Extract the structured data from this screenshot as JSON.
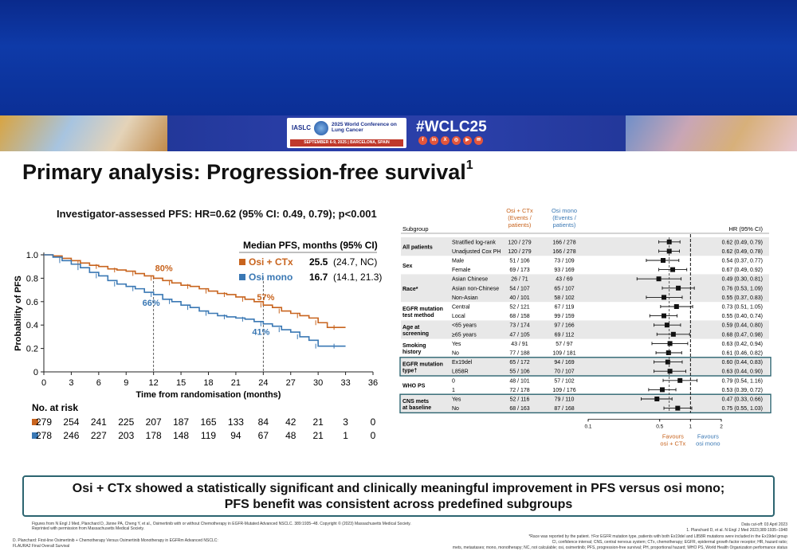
{
  "header": {
    "hashtag": "#WCLC25",
    "org": "IASLC",
    "conference_title": "2025 World Conference on Lung Cancer",
    "conference_dates": "SEPTEMBER 6-9, 2025 | BARCELONA, SPAIN",
    "social_icons": [
      "facebook-icon",
      "linkedin-icon",
      "x-icon",
      "instagram-icon",
      "youtube-icon",
      "wechat-icon"
    ]
  },
  "slide": {
    "title": "Primary analysis: Progression-free survival",
    "title_sup": "1",
    "subtitle": "Investigator-assessed PFS: HR=0.62 (95% CI: 0.49, 0.79); p<0.001",
    "summary_line1": "Osi + CTx showed a statistically significant and clinically meaningful improvement in PFS versus osi mono;",
    "summary_line2": "PFS benefit was consistent across predefined subgroups"
  },
  "colors": {
    "osi_ctx": "#c8641e",
    "osi_mono": "#3a78b4",
    "box_outline": "#2c6470"
  },
  "chart_data": [
    {
      "type": "line",
      "subtype": "kaplan-meier",
      "ylabel": "Probability of PFS",
      "xlabel": "Time from randomisation (months)",
      "xticks": [
        0,
        3,
        6,
        9,
        12,
        15,
        18,
        21,
        24,
        27,
        30,
        33,
        36
      ],
      "yticks": [
        "0",
        "0.2",
        "0.4",
        "0.6",
        "0.8",
        "1.0"
      ],
      "xlim": [
        0,
        36
      ],
      "ylim": [
        0,
        1
      ],
      "legend_title": "Median PFS, months (95% CI)",
      "legend": [
        {
          "name": "Osi + CTx",
          "value": "25.5",
          "ci": "(24.7, NC)"
        },
        {
          "name": "Osi mono",
          "value": "16.7",
          "ci": "(14.1, 21.3)"
        }
      ],
      "annotations": [
        {
          "text": "80%",
          "x": 12,
          "y": 0.8
        },
        {
          "text": "66%",
          "x": 12,
          "y": 0.66
        },
        {
          "text": "57%",
          "x": 24,
          "y": 0.57
        },
        {
          "text": "41%",
          "x": 24,
          "y": 0.41
        }
      ],
      "series": [
        {
          "name": "Osi + CTx",
          "x": [
            0,
            1,
            2,
            3,
            4,
            5,
            6,
            7,
            8,
            9,
            10,
            11,
            12,
            13,
            14,
            15,
            16,
            17,
            18,
            19,
            20,
            21,
            22,
            23,
            24,
            25,
            26,
            27,
            28,
            29,
            30,
            31,
            32,
            33
          ],
          "values": [
            1.0,
            0.99,
            0.97,
            0.95,
            0.93,
            0.91,
            0.9,
            0.88,
            0.87,
            0.86,
            0.84,
            0.82,
            0.8,
            0.78,
            0.76,
            0.74,
            0.73,
            0.71,
            0.69,
            0.67,
            0.66,
            0.64,
            0.62,
            0.6,
            0.57,
            0.55,
            0.52,
            0.5,
            0.48,
            0.46,
            0.42,
            0.38,
            0.38,
            0.38
          ]
        },
        {
          "name": "Osi mono",
          "x": [
            0,
            1,
            2,
            3,
            4,
            5,
            6,
            7,
            8,
            9,
            10,
            11,
            12,
            13,
            14,
            15,
            16,
            17,
            18,
            19,
            20,
            21,
            22,
            23,
            24,
            25,
            26,
            27,
            28,
            29,
            30,
            31,
            32,
            33
          ],
          "values": [
            1.0,
            0.98,
            0.95,
            0.92,
            0.89,
            0.85,
            0.82,
            0.78,
            0.75,
            0.73,
            0.71,
            0.68,
            0.66,
            0.62,
            0.6,
            0.57,
            0.55,
            0.52,
            0.5,
            0.48,
            0.47,
            0.46,
            0.45,
            0.43,
            0.41,
            0.39,
            0.36,
            0.34,
            0.3,
            0.27,
            0.22,
            0.22,
            0.22,
            0.22
          ]
        }
      ],
      "at_risk": {
        "label": "No. at risk",
        "rows": [
          {
            "name": "Osi + CTx",
            "values": [
              "279",
              "254",
              "241",
              "225",
              "207",
              "187",
              "165",
              "133",
              "84",
              "42",
              "21",
              "3",
              "0"
            ]
          },
          {
            "name": "Osi mono",
            "values": [
              "278",
              "246",
              "227",
              "203",
              "178",
              "148",
              "119",
              "94",
              "67",
              "48",
              "21",
              "1",
              "0"
            ]
          }
        ]
      }
    },
    {
      "type": "scatter",
      "subtype": "forest-plot",
      "headers": {
        "subgroup": "Subgroup",
        "col_ctx": "Osi + CTx (Events / patients)",
        "col_mono": "Osi mono (Events / patients)",
        "hr": "HR (95% CI)"
      },
      "xscale": "log",
      "xticks": [
        "0.1",
        "0.5",
        "1",
        "2"
      ],
      "favours_left": "Favours osi + CTx",
      "favours_right": "Favours osi mono",
      "groups": [
        {
          "label": "All patients",
          "rows": [
            {
              "name": "Stratified log-rank",
              "ctx": "120 / 279",
              "mono": "166 / 278",
              "hr": 0.62,
              "lo": 0.49,
              "hi": 0.79,
              "text": "0.62 (0.49, 0.79)"
            },
            {
              "name": "Unadjusted Cox PH",
              "ctx": "120 / 279",
              "mono": "166 / 278",
              "hr": 0.62,
              "lo": 0.49,
              "hi": 0.78,
              "text": "0.62 (0.49, 0.78)"
            }
          ]
        },
        {
          "label": "Sex",
          "rows": [
            {
              "name": "Male",
              "ctx": "51 / 106",
              "mono": "73 / 109",
              "hr": 0.54,
              "lo": 0.37,
              "hi": 0.77,
              "text": "0.54 (0.37, 0.77)"
            },
            {
              "name": "Female",
              "ctx": "69 / 173",
              "mono": "93 / 169",
              "hr": 0.67,
              "lo": 0.49,
              "hi": 0.92,
              "text": "0.67 (0.49, 0.92)"
            }
          ]
        },
        {
          "label": "Race*",
          "rows": [
            {
              "name": "Asian Chinese",
              "ctx": "26 / 71",
              "mono": "43 / 69",
              "hr": 0.49,
              "lo": 0.3,
              "hi": 0.81,
              "text": "0.49 (0.30, 0.81)"
            },
            {
              "name": "Asian non-Chinese",
              "ctx": "54 / 107",
              "mono": "65 / 107",
              "hr": 0.76,
              "lo": 0.53,
              "hi": 1.09,
              "text": "0.76 (0.53, 1.09)"
            },
            {
              "name": "Non-Asian",
              "ctx": "40 / 101",
              "mono": "58 / 102",
              "hr": 0.55,
              "lo": 0.37,
              "hi": 0.83,
              "text": "0.55 (0.37, 0.83)"
            }
          ]
        },
        {
          "label": "EGFR mutation test method",
          "rows": [
            {
              "name": "Central",
              "ctx": "52 / 121",
              "mono": "67 / 119",
              "hr": 0.73,
              "lo": 0.51,
              "hi": 1.05,
              "text": "0.73 (0.51, 1.05)"
            },
            {
              "name": "Local",
              "ctx": "68 / 158",
              "mono": "99 / 159",
              "hr": 0.55,
              "lo": 0.4,
              "hi": 0.74,
              "text": "0.55 (0.40, 0.74)"
            }
          ]
        },
        {
          "label": "Age at screening",
          "rows": [
            {
              "name": "<65 years",
              "ctx": "73 / 174",
              "mono": "97 / 166",
              "hr": 0.59,
              "lo": 0.44,
              "hi": 0.8,
              "text": "0.59 (0.44, 0.80)"
            },
            {
              "name": "≥65 years",
              "ctx": "47 / 105",
              "mono": "69 / 112",
              "hr": 0.68,
              "lo": 0.47,
              "hi": 0.98,
              "text": "0.68 (0.47, 0.98)"
            }
          ]
        },
        {
          "label": "Smoking history",
          "rows": [
            {
              "name": "Yes",
              "ctx": "43 / 91",
              "mono": "57 / 97",
              "hr": 0.63,
              "lo": 0.42,
              "hi": 0.94,
              "text": "0.63 (0.42, 0.94)"
            },
            {
              "name": "No",
              "ctx": "77 / 188",
              "mono": "109 / 181",
              "hr": 0.61,
              "lo": 0.46,
              "hi": 0.82,
              "text": "0.61 (0.46, 0.82)"
            }
          ]
        },
        {
          "label": "EGFR mutation type†",
          "boxed": true,
          "rows": [
            {
              "name": "Ex19del",
              "ctx": "65 / 172",
              "mono": "94 / 169",
              "hr": 0.6,
              "lo": 0.44,
              "hi": 0.83,
              "text": "0.60 (0.44, 0.83)"
            },
            {
              "name": "L858R",
              "ctx": "55 / 106",
              "mono": "70 / 107",
              "hr": 0.63,
              "lo": 0.44,
              "hi": 0.9,
              "text": "0.63 (0.44, 0.90)"
            }
          ]
        },
        {
          "label": "WHO PS",
          "rows": [
            {
              "name": "0",
              "ctx": "48 / 101",
              "mono": "57 / 102",
              "hr": 0.79,
              "lo": 0.54,
              "hi": 1.16,
              "text": "0.79 (0.54, 1.16)"
            },
            {
              "name": "1",
              "ctx": "72 / 178",
              "mono": "109 / 176",
              "hr": 0.53,
              "lo": 0.39,
              "hi": 0.72,
              "text": "0.53 (0.39, 0.72)"
            }
          ]
        },
        {
          "label": "CNS mets at baseline",
          "boxed": true,
          "rows": [
            {
              "name": "Yes",
              "ctx": "52 / 116",
              "mono": "79 / 110",
              "hr": 0.47,
              "lo": 0.33,
              "hi": 0.66,
              "text": "0.47 (0.33, 0.66)"
            },
            {
              "name": "No",
              "ctx": "68 / 163",
              "mono": "87 / 168",
              "hr": 0.75,
              "lo": 0.55,
              "hi": 1.03,
              "text": "0.75 (0.55, 1.03)"
            }
          ]
        }
      ]
    }
  ],
  "footnotes": {
    "left1": "Figures from N Engl J Med, Planchard D, Jänne PA, Cheng Y, et al., Osimertinib with or without Chemotherapy in EGFR-Mutated Advanced NSCLC. 389:1935–48. Copyright © (2023) Massachusetts Medical Society.",
    "left2": "Reprinted with permission from Massachusetts Medical Society.",
    "left3": "D. Planchard: First-line Osimertinib + Chemotherapy Versus Osimertinib Monotherapy in EGFRm Advanced NSCLC:",
    "left4": "FLAURA2 Final Overall Survival",
    "right1": "Data cut-off: 03 April 2023",
    "right2": "1. Planchard D, et al. N Engl J Med 2023;389:1935–1948",
    "right3": "*Race was reported by the patient. †For EGFR mutation type, patients with both Ex19del and L858R mutations were included in the Ex19del group",
    "right4": "CI, confidence interval; CNS, central nervous system; CTx, chemotherapy; EGFR, epidermal growth factor receptor; HR, hazard ratio;",
    "right5": "mets, metastases; mono, monotherapy; NC, not calculable; osi, osimertinib; PFS, progression-free survival; PH, proportional hazard; WHO PS, World Health Organization performance status"
  }
}
